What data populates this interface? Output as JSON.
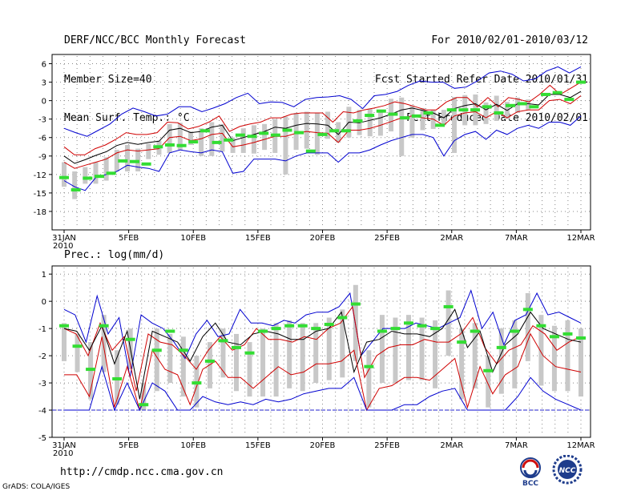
{
  "header": {
    "title": "DERF/NCC/BCC Monthly Forecast",
    "member_size": "Member Size=40",
    "variable1": "Mean Surf. Temp.: °C",
    "period": "For 2010/02/01-2010/03/12",
    "started": "Fcst Started Refer Date 2010/01/31",
    "produced": "Fcst Produced Date 2010/02/01"
  },
  "footer": {
    "url": "http://cmdp.ncc.cma.gov.cn",
    "grads": "GrADS: COLA/IGES",
    "logo_bcc": "BCC",
    "logo_ncc": "NCC"
  },
  "colors": {
    "max_min": "#0000d0",
    "percentile": "#d00000",
    "median": "#000000",
    "box": "#c8c8c8",
    "mean": "#33dd33",
    "grid": "#888888",
    "baseline": "#2222cc"
  },
  "chart_data": [
    {
      "type": "line",
      "title": "Mean Surf. Temp.: °C",
      "ylabel": "°C",
      "xlabel": "",
      "x_ticks": [
        "31JAN",
        "5FEB",
        "10FEB",
        "15FEB",
        "20FEB",
        "25FEB",
        "2MAR",
        "7MAR",
        "12MAR"
      ],
      "x_year": "2010",
      "y_ticks": [
        6,
        3,
        0,
        -3,
        -6,
        -9,
        -12,
        -15,
        -18
      ],
      "ylim": [
        -21,
        7.5
      ],
      "days": 41,
      "series": [
        {
          "name": "max",
          "values": [
            -4.5,
            -5.2,
            -5.8,
            -4.8,
            -3.8,
            -2.2,
            -1.2,
            -1.8,
            -2.5,
            -2.2,
            -1.0,
            -1.0,
            -1.8,
            -1.2,
            -0.5,
            0.5,
            1.2,
            -0.5,
            -0.2,
            -0.3,
            -1.0,
            0.2,
            0.5,
            0.6,
            0.8,
            0.2,
            -1.3,
            0.8,
            1.0,
            1.5,
            2.5,
            3.2,
            3.0,
            3.0,
            2.0,
            2.2,
            3.2,
            4.5,
            4.8,
            4.3,
            3.2,
            3.5,
            4.8,
            5.5,
            4.5,
            5.5
          ]
        },
        {
          "name": "p_high",
          "values": [
            -7.5,
            -8.8,
            -8.8,
            -7.8,
            -7.2,
            -6.3,
            -5.2,
            -5.5,
            -5.5,
            -5.2,
            -3.5,
            -3.6,
            -4.6,
            -4.2,
            -3.5,
            -2.5,
            -5.0,
            -4.2,
            -3.8,
            -3.5,
            -2.8,
            -2.8,
            -2.2,
            -2.0,
            -2.0,
            -2.0,
            -3.5,
            -1.8,
            -2.0,
            -1.5,
            -1.2,
            -0.8,
            -0.2,
            -0.5,
            -1.0,
            -1.5,
            -1.5,
            -0.2,
            0.5,
            0.5,
            -1.0,
            0.5,
            -1.0,
            0.5,
            0.2,
            -0.2,
            1.0,
            2.5,
            1.0,
            2.0,
            3.0
          ]
        },
        {
          "name": "median",
          "values": [
            -9.0,
            -10.2,
            -9.6,
            -8.9,
            -8.3,
            -7.3,
            -6.8,
            -7.1,
            -6.8,
            -6.6,
            -4.8,
            -4.5,
            -5.2,
            -5.0,
            -4.3,
            -4.0,
            -6.5,
            -6.0,
            -5.5,
            -5.0,
            -4.3,
            -4.5,
            -4.0,
            -3.7,
            -3.8,
            -4.0,
            -5.5,
            -3.5,
            -3.6,
            -3.2,
            -2.8,
            -2.2,
            -1.5,
            -1.2,
            -1.6,
            -2.0,
            -2.8,
            -1.3,
            -0.8,
            -0.5,
            -1.5,
            -0.6,
            -1.6,
            -0.5,
            -0.5,
            -0.7,
            1.0,
            1.0,
            0.5,
            1.5
          ]
        },
        {
          "name": "p_low",
          "values": [
            -10.0,
            -11.0,
            -10.5,
            -10.0,
            -9.5,
            -8.5,
            -8.0,
            -8.2,
            -8.0,
            -7.8,
            -6.0,
            -5.8,
            -6.5,
            -6.2,
            -5.5,
            -5.3,
            -7.5,
            -7.2,
            -6.8,
            -6.3,
            -5.8,
            -5.8,
            -5.3,
            -5.0,
            -5.2,
            -5.3,
            -6.8,
            -4.8,
            -4.8,
            -4.5,
            -4.0,
            -3.4,
            -2.8,
            -2.5,
            -2.8,
            -3.0,
            -4.0,
            -2.5,
            -2.0,
            -1.8,
            -2.8,
            -1.8,
            -2.8,
            -1.8,
            -1.5,
            -1.5,
            0.0,
            0.2,
            -0.5,
            0.8
          ]
        },
        {
          "name": "min",
          "values": [
            -13.0,
            -14.0,
            -14.6,
            -12.5,
            -12.0,
            -11.5,
            -10.5,
            -10.8,
            -11.0,
            -11.5,
            -8.5,
            -8.0,
            -8.3,
            -8.5,
            -8.0,
            -8.3,
            -11.8,
            -11.5,
            -9.5,
            -9.5,
            -9.5,
            -9.8,
            -9.0,
            -8.5,
            -8.5,
            -8.5,
            -10.0,
            -8.5,
            -8.5,
            -8.0,
            -7.2,
            -6.5,
            -6.0,
            -5.5,
            -5.5,
            -6.0,
            -9.0,
            -6.5,
            -5.5,
            -5.0,
            -6.3,
            -4.8,
            -5.5,
            -4.5,
            -4.0,
            -4.5,
            -3.5,
            -3.5,
            -4.0,
            -2.5
          ]
        },
        {
          "name": "mean",
          "values": [
            -12.5,
            -14.5,
            -12.6,
            -12.3,
            -11.8,
            -9.8,
            -9.9,
            -10.3,
            -7.5,
            -7.2,
            -7.3,
            -6.7,
            -4.9,
            -6.8,
            -6.4,
            -5.6,
            -5.8,
            -5.3,
            -5.6,
            -4.8,
            -5.2,
            -8.2,
            -5.5,
            -4.9,
            -4.9,
            -3.3,
            -2.4,
            -1.7,
            -2.2,
            -2.8,
            -2.5,
            -2.0,
            -4.0,
            -1.5,
            -1.5,
            -1.5,
            -1.0,
            -2.0,
            -0.8,
            -0.5,
            -1.0,
            1.0,
            1.3,
            0.2,
            3.0
          ]
        },
        {
          "name": "box_high",
          "values": [
            -10.0,
            -11.5,
            -10.8,
            -10.0,
            -9.2,
            -8.0,
            -7.2,
            -7.8,
            -7.0,
            -6.5,
            -3.8,
            -3.6,
            -5.0,
            -4.5,
            -3.5,
            -3.8,
            -6.0,
            -4.5,
            -4.0,
            -3.8,
            -3.0,
            -2.6,
            -2.0,
            -1.8,
            -2.0,
            -1.8,
            -3.5,
            -1.0,
            -1.5,
            -1.3,
            -1.5,
            0.3,
            0.5,
            -0.8,
            -1.2,
            -1.5,
            -1.5,
            0.6,
            0.9,
            1.0,
            -0.3,
            0.8,
            -0.2,
            0.5,
            0.2,
            0.0,
            2.0,
            2.0,
            1.0,
            2.2
          ]
        },
        {
          "name": "box_low",
          "values": [
            -14.0,
            -16.0,
            -13.5,
            -13.5,
            -13.0,
            -11.5,
            -11.5,
            -11.5,
            -9.5,
            -8.8,
            -8.5,
            -8.0,
            -7.2,
            -9.0,
            -9.0,
            -8.3,
            -8.5,
            -8.5,
            -8.6,
            -8.0,
            -8.5,
            -12.0,
            -8.0,
            -7.8,
            -8.8,
            -6.2,
            -6.8,
            -6.0,
            -5.6,
            -5.8,
            -5.7,
            -5.0,
            -9.0,
            -6.0,
            -4.8,
            -4.6,
            -4.0,
            -8.5,
            -4.0,
            -4.0,
            -3.8,
            -3.3,
            -3.0,
            -2.0,
            -1.5
          ]
        }
      ]
    },
    {
      "type": "line",
      "title": "Prec.: log(mm/d)",
      "ylabel": "log(mm/d)",
      "xlabel": "",
      "x_ticks": [
        "31JAN",
        "5FEB",
        "10FEB",
        "15FEB",
        "20FEB",
        "25FEB",
        "2MAR",
        "7MAR",
        "12MAR"
      ],
      "x_year": "2010",
      "y_ticks": [
        1,
        0,
        -1,
        -2,
        -3,
        -4,
        -5
      ],
      "ylim": [
        -5,
        1.3
      ],
      "days": 41,
      "series": [
        {
          "name": "max",
          "values": [
            -0.3,
            -0.5,
            -1.5,
            0.2,
            -1.2,
            -0.6,
            -2.8,
            -0.5,
            -0.8,
            -1.0,
            -1.5,
            -2.1,
            -1.2,
            -0.7,
            -1.3,
            -1.2,
            -0.3,
            -0.8,
            -0.8,
            -0.9,
            -0.7,
            -0.8,
            -0.5,
            -0.4,
            -0.4,
            -0.2,
            0.3,
            -2.0,
            -1.5,
            -1.0,
            -1.0,
            -1.0,
            -0.8,
            -0.9,
            -1.0,
            -0.8,
            -0.6,
            0.4,
            -1.0,
            -0.4,
            -1.6,
            -0.7,
            -0.5,
            0.3,
            -0.5,
            -0.4,
            -0.6,
            -0.8
          ]
        },
        {
          "name": "p_high",
          "values": [
            -1.0,
            -1.2,
            -2.0,
            -0.8,
            -1.8,
            -1.3,
            -3.3,
            -1.2,
            -1.5,
            -1.6,
            -2.0,
            -2.5,
            -1.8,
            -1.3,
            -1.8,
            -1.6,
            -1.0,
            -1.4,
            -1.4,
            -1.5,
            -1.3,
            -1.4,
            -1.0,
            -0.8,
            -0.2,
            -2.8,
            -2.0,
            -1.7,
            -1.6,
            -1.6,
            -1.4,
            -1.5,
            -1.5,
            -1.2,
            -0.6,
            -1.7,
            -2.3,
            -1.8,
            -1.6,
            -0.9,
            -1.2,
            -1.8,
            -1.5,
            -1.3
          ]
        },
        {
          "name": "median",
          "values": [
            -1.0,
            -1.1,
            -1.8,
            -0.9,
            -2.3,
            -1.1,
            -3.6,
            -1.1,
            -1.3,
            -1.5,
            -2.2,
            -1.3,
            -0.8,
            -1.5,
            -1.6,
            -1.2,
            -1.1,
            -1.2,
            -1.4,
            -1.4,
            -1.1,
            -1.0,
            -0.4,
            -2.6,
            -1.5,
            -1.4,
            -1.1,
            -1.2,
            -1.2,
            -1.3,
            -1.0,
            -0.3,
            -1.7,
            -1.1,
            -2.6,
            -1.6,
            -1.2,
            -0.4,
            -1.0,
            -1.2,
            -1.4,
            -1.5
          ]
        },
        {
          "name": "p_low",
          "values": [
            -2.7,
            -2.7,
            -3.5,
            -1.3,
            -3.9,
            -2.4,
            -4.0,
            -1.8,
            -2.5,
            -2.7,
            -3.8,
            -2.5,
            -2.2,
            -2.8,
            -2.8,
            -3.2,
            -2.8,
            -2.4,
            -2.7,
            -2.6,
            -2.3,
            -2.3,
            -2.2,
            -1.8,
            -4.0,
            -3.2,
            -3.1,
            -2.8,
            -2.8,
            -2.9,
            -2.5,
            -2.1,
            -3.9,
            -2.4,
            -3.4,
            -2.7,
            -2.4,
            -1.2,
            -2.0,
            -2.4,
            -2.5,
            -2.6
          ]
        },
        {
          "name": "min",
          "values": [
            -4.0,
            -4.0,
            -4.0,
            -2.4,
            -4.0,
            -3.0,
            -4.0,
            -3.0,
            -3.3,
            -4.0,
            -4.0,
            -3.5,
            -3.7,
            -3.8,
            -3.7,
            -3.8,
            -3.6,
            -3.7,
            -3.6,
            -3.4,
            -3.3,
            -3.2,
            -3.2,
            -2.8,
            -4.0,
            -4.0,
            -4.0,
            -3.8,
            -3.8,
            -3.5,
            -3.3,
            -3.2,
            -4.0,
            -4.0,
            -4.0,
            -4.0,
            -3.5,
            -2.8,
            -3.3,
            -3.6,
            -3.8,
            -4.0
          ]
        },
        {
          "name": "mean",
          "values": [
            -0.9,
            -1.65,
            -2.5,
            -0.9,
            -2.85,
            -1.4,
            -3.8,
            -1.8,
            -1.1,
            -1.8,
            -3.0,
            -2.2,
            -1.45,
            -1.7,
            -1.9,
            -1.1,
            -1.0,
            -0.9,
            -0.9,
            -1.0,
            -0.85,
            -0.6,
            -0.1,
            -2.4,
            -1.1,
            -1.0,
            -0.8,
            -0.9,
            -1.0,
            -0.2,
            -1.5,
            -1.1,
            -2.55,
            -1.7,
            -1.1,
            -0.3,
            -0.9,
            -1.3,
            -1.2,
            -1.35
          ]
        },
        {
          "name": "box_high",
          "values": [
            -0.8,
            -1.2,
            -1.5,
            -0.5,
            -1.8,
            -1.0,
            -3.0,
            -1.0,
            -1.2,
            -1.3,
            -2.0,
            -1.5,
            -1.0,
            -1.2,
            -1.5,
            -1.0,
            -0.8,
            -0.7,
            -0.8,
            -0.8,
            -0.6,
            -0.3,
            0.6,
            -1.8,
            -0.5,
            -0.6,
            -0.5,
            -0.6,
            -0.7,
            0.4,
            -1.0,
            -0.8,
            -2.0,
            -1.0,
            -0.7,
            0.3,
            -0.5,
            -0.9,
            -0.7,
            -1.0
          ]
        },
        {
          "name": "box_low",
          "values": [
            -2.2,
            -2.6,
            -3.6,
            -2.6,
            -3.8,
            -2.5,
            -4.0,
            -3.3,
            -3.0,
            -3.5,
            -3.9,
            -3.2,
            -2.8,
            -3.3,
            -3.5,
            -3.5,
            -3.5,
            -3.2,
            -3.3,
            -3.0,
            -2.9,
            -2.8,
            -2.2,
            -3.9,
            -3.0,
            -3.0,
            -2.9,
            -2.9,
            -3.2,
            -2.0,
            -3.6,
            -3.2,
            -3.9,
            -3.4,
            -3.2,
            -2.2,
            -3.1,
            -3.3,
            -3.3,
            -3.5
          ]
        }
      ]
    }
  ]
}
